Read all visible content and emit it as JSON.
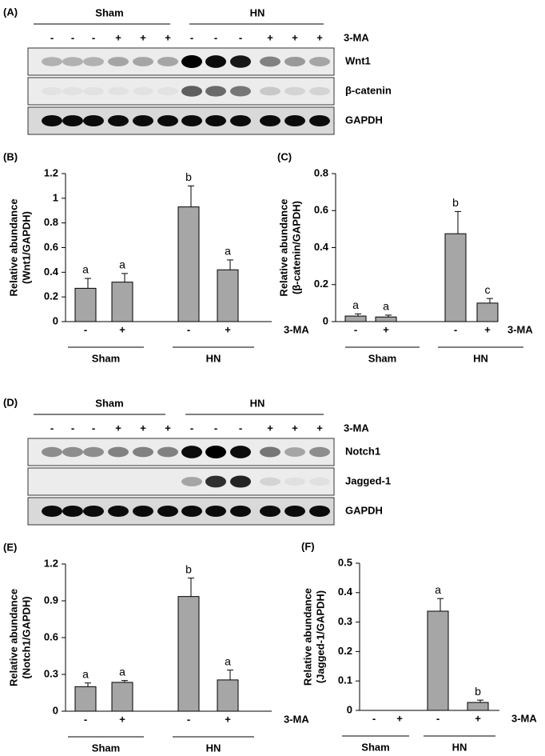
{
  "blots": [
    {
      "label": "(A)",
      "groups": [
        "Sham",
        "HN"
      ],
      "lanes": [
        "-",
        "-",
        "-",
        "+",
        "+",
        "+",
        "-",
        "-",
        "-",
        "+",
        "+",
        "+"
      ],
      "treatment_label": "3-MA",
      "rows": [
        "Wnt1",
        "β-catenin",
        "GAPDH"
      ]
    },
    {
      "label": "(D)",
      "groups": [
        "Sham",
        "HN"
      ],
      "lanes": [
        "-",
        "-",
        "-",
        "+",
        "+",
        "+",
        "-",
        "-",
        "-",
        "+",
        "+",
        "+"
      ],
      "treatment_label": "3-MA",
      "rows": [
        "Notch1",
        "Jagged-1",
        "GAPDH"
      ]
    }
  ],
  "chart_data": [
    {
      "type": "bar",
      "panel_label": "(B)",
      "ylabel": [
        "Relative abundance",
        "(Wnt1/GAPDH)"
      ],
      "categories": [
        "-",
        "+",
        "-",
        "+"
      ],
      "groups": [
        "Sham",
        "HN"
      ],
      "xlabel": "3-MA",
      "values": [
        0.27,
        0.32,
        0.93,
        0.42
      ],
      "errors": [
        0.08,
        0.07,
        0.17,
        0.08
      ],
      "letters": [
        "a",
        "a",
        "b",
        "a"
      ],
      "color": "#a6a6a6",
      "ylim": [
        0,
        1.2
      ],
      "yticks": [
        0,
        0.2,
        0.4,
        0.6,
        0.8,
        1,
        1.2
      ]
    },
    {
      "type": "bar",
      "panel_label": "(C)",
      "ylabel": [
        "Relative abundance",
        "(β-catenin/GAPDH)"
      ],
      "categories": [
        "-",
        "+",
        "-",
        "+"
      ],
      "groups": [
        "Sham",
        "HN"
      ],
      "xlabel": "3-MA",
      "values": [
        0.03,
        0.025,
        0.475,
        0.1
      ],
      "errors": [
        0.012,
        0.01,
        0.12,
        0.025
      ],
      "letters": [
        "a",
        "a",
        "b",
        "c"
      ],
      "color": "#a6a6a6",
      "ylim": [
        0,
        0.8
      ],
      "yticks": [
        0,
        0.2,
        0.4,
        0.6,
        0.8
      ]
    },
    {
      "type": "bar",
      "panel_label": "(E)",
      "ylabel": [
        "Relative abundance",
        "(Notch1/GAPDH)"
      ],
      "categories": [
        "-",
        "+",
        "-",
        "+"
      ],
      "groups": [
        "Sham",
        "HN"
      ],
      "xlabel": "3-MA",
      "values": [
        0.2,
        0.235,
        0.935,
        0.255
      ],
      "errors": [
        0.03,
        0.015,
        0.15,
        0.08
      ],
      "letters": [
        "a",
        "a",
        "b",
        "a"
      ],
      "color": "#a6a6a6",
      "ylim": [
        0,
        1.2
      ],
      "yticks": [
        0,
        0.3,
        0.6,
        0.9,
        1.2
      ]
    },
    {
      "type": "bar",
      "panel_label": "(F)",
      "ylabel": [
        "Relative abundance",
        "(Jagged-1/GAPDH)"
      ],
      "categories": [
        "-",
        "+",
        "-",
        "+"
      ],
      "groups": [
        "Sham",
        "HN"
      ],
      "xlabel": "3-MA",
      "values": [
        null,
        null,
        0.337,
        0.027
      ],
      "errors": [
        null,
        null,
        0.043,
        0.008
      ],
      "letters": [
        null,
        null,
        "a",
        "b"
      ],
      "color": "#a6a6a6",
      "ylim": [
        0,
        0.5
      ],
      "yticks": [
        0,
        0.1,
        0.2,
        0.3,
        0.4,
        0.5
      ]
    }
  ]
}
